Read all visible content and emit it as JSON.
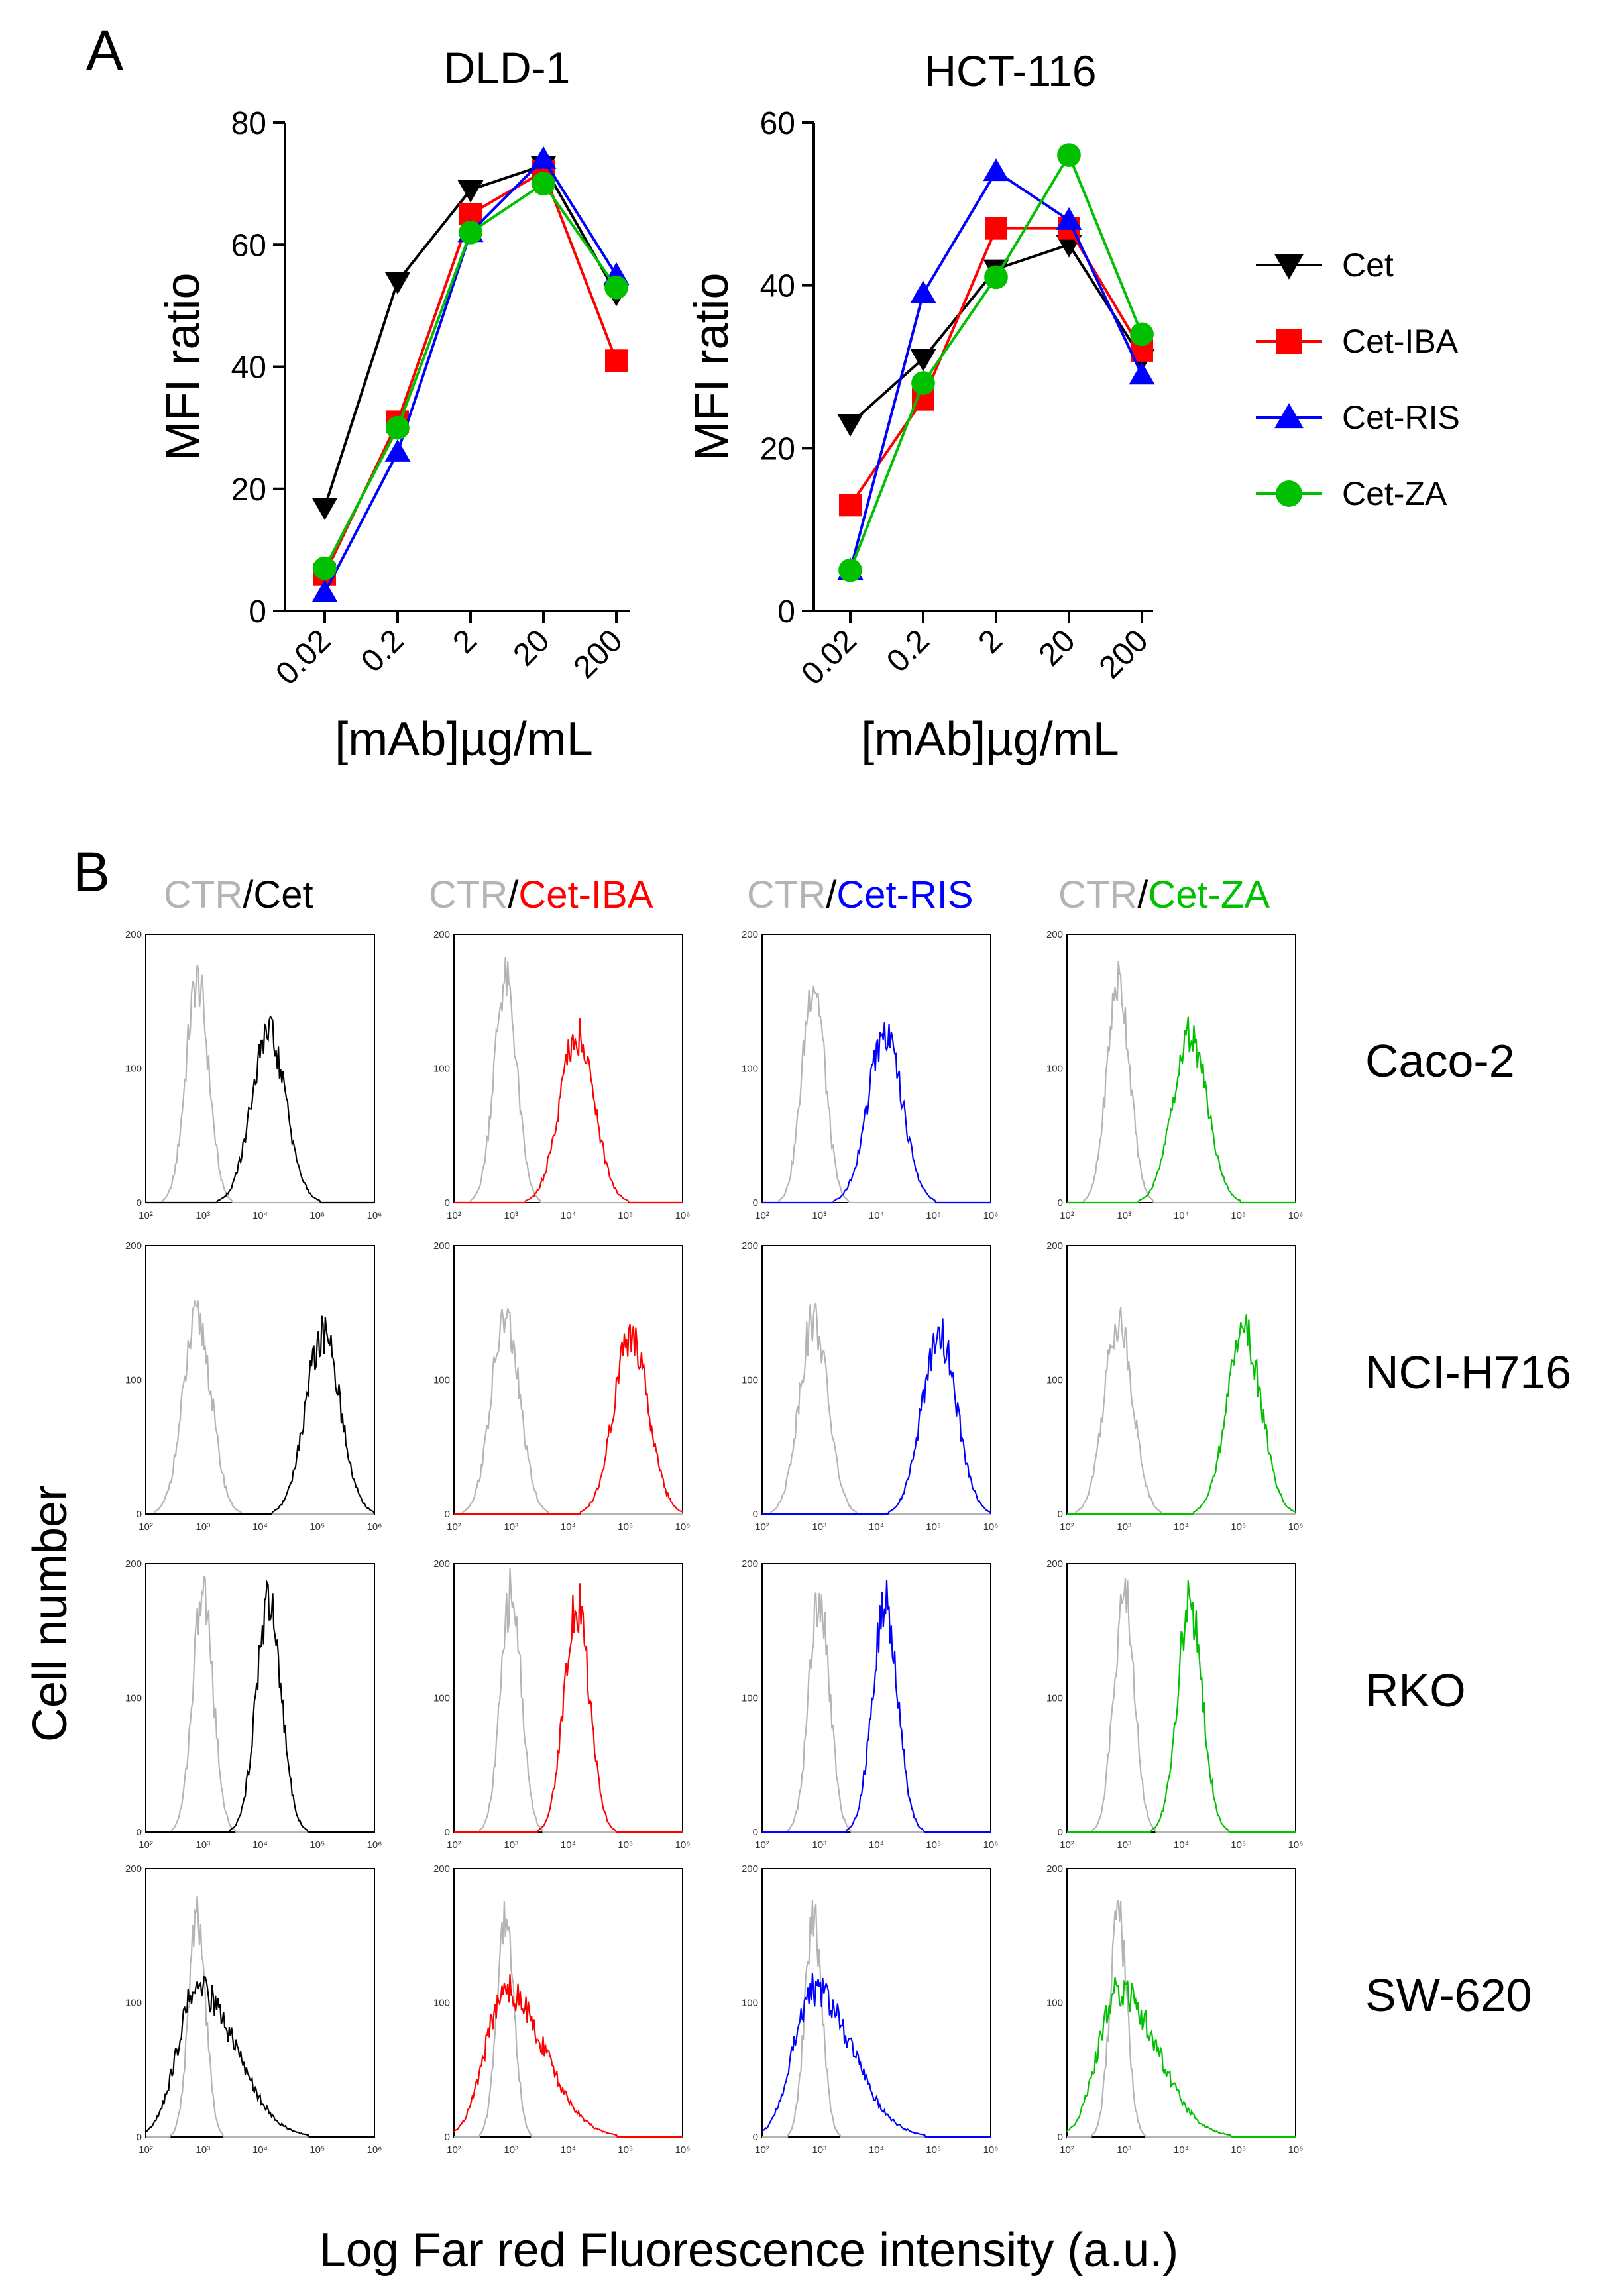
{
  "panel_labels": {
    "a": "A",
    "b": "B"
  },
  "colors": {
    "cet": "#000000",
    "iba": "#ff0000",
    "ris": "#0000ff",
    "za": "#00c000",
    "ctr": "#b4b4b4"
  },
  "legend": [
    {
      "key": "cet",
      "label": "Cet",
      "marker": "triangle-down"
    },
    {
      "key": "iba",
      "label": "Cet-IBA",
      "marker": "square"
    },
    {
      "key": "ris",
      "label": "Cet-RIS",
      "marker": "triangle-up"
    },
    {
      "key": "za",
      "label": "Cet-ZA",
      "marker": "circle"
    }
  ],
  "chart_data": [
    {
      "type": "line",
      "title": "DLD-1",
      "xlabel": "[mAb]µg/mL",
      "ylabel": "MFI ratio",
      "categories": [
        "0.02",
        "0.2",
        "2",
        "20",
        "200"
      ],
      "ylim": [
        0,
        80
      ],
      "yticks": [
        0,
        20,
        40,
        60,
        80
      ],
      "series": [
        {
          "key": "cet",
          "name": "Cet",
          "values": [
            17,
            54,
            69,
            73,
            52
          ]
        },
        {
          "key": "iba",
          "name": "Cet-IBA",
          "values": [
            6,
            31,
            65,
            72,
            41
          ]
        },
        {
          "key": "ris",
          "name": "Cet-RIS",
          "values": [
            3,
            26,
            62,
            74,
            55
          ]
        },
        {
          "key": "za",
          "name": "Cet-ZA",
          "values": [
            7,
            30,
            62,
            70,
            53
          ]
        }
      ]
    },
    {
      "type": "line",
      "title": "HCT-116",
      "xlabel": "[mAb]µg/mL",
      "ylabel": "MFI ratio",
      "categories": [
        "0.02",
        "0.2",
        "2",
        "20",
        "200"
      ],
      "ylim": [
        0,
        60
      ],
      "yticks": [
        0,
        20,
        40,
        60
      ],
      "series": [
        {
          "key": "cet",
          "name": "Cet",
          "values": [
            23,
            31,
            42,
            45,
            31
          ]
        },
        {
          "key": "iba",
          "name": "Cet-IBA",
          "values": [
            13,
            26,
            47,
            47,
            32
          ]
        },
        {
          "key": "ris",
          "name": "Cet-RIS",
          "values": [
            5,
            39,
            54,
            48,
            29
          ]
        },
        {
          "key": "za",
          "name": "Cet-ZA",
          "values": [
            5,
            28,
            41,
            56,
            34
          ]
        }
      ]
    },
    {
      "type": "histogram-grid",
      "ylabel": "Cell number",
      "xlabel": "Log Far red Fluorescence intensity (a.u.)",
      "columns": [
        {
          "key": "cet",
          "ctr": "CTR",
          "sep": "/",
          "label": "Cet"
        },
        {
          "key": "iba",
          "ctr": "CTR",
          "sep": "/",
          "label": "Cet-IBA"
        },
        {
          "key": "ris",
          "ctr": "CTR",
          "sep": "/",
          "label": "Cet-RIS"
        },
        {
          "key": "za",
          "ctr": "CTR",
          "sep": "/",
          "label": "Cet-ZA"
        }
      ],
      "x_tick_labels": [
        "10²",
        "10³",
        "10⁴",
        "10⁵",
        "10⁶"
      ],
      "y_tick_labels": [
        "0",
        "100",
        "200"
      ],
      "rows": [
        {
          "name": "Caco-2",
          "ctr_peak_log": 2.9,
          "ctr_peak_height": 165,
          "ctr_width": 0.2,
          "treated_peak_log": 4.15,
          "treated_peak_height": 125,
          "treated_width": 0.3
        },
        {
          "name": "NCI-H716",
          "ctr_peak_log": 2.9,
          "ctr_peak_height": 145,
          "ctr_width": 0.25,
          "treated_peak_log": 5.1,
          "treated_peak_height": 135,
          "treated_width": 0.3
        },
        {
          "name": "RKO",
          "ctr_peak_log": 3.0,
          "ctr_peak_height": 178,
          "ctr_width": 0.18,
          "treated_peak_log": 4.15,
          "treated_peak_height": 170,
          "treated_width": 0.22
        },
        {
          "name": "SW-620",
          "ctr_peak_log": 2.9,
          "ctr_peak_height": 165,
          "ctr_width": 0.15,
          "treated_peak_log": 2.9,
          "treated_peak_height": 110,
          "treated_width": 0.35
        }
      ]
    }
  ]
}
